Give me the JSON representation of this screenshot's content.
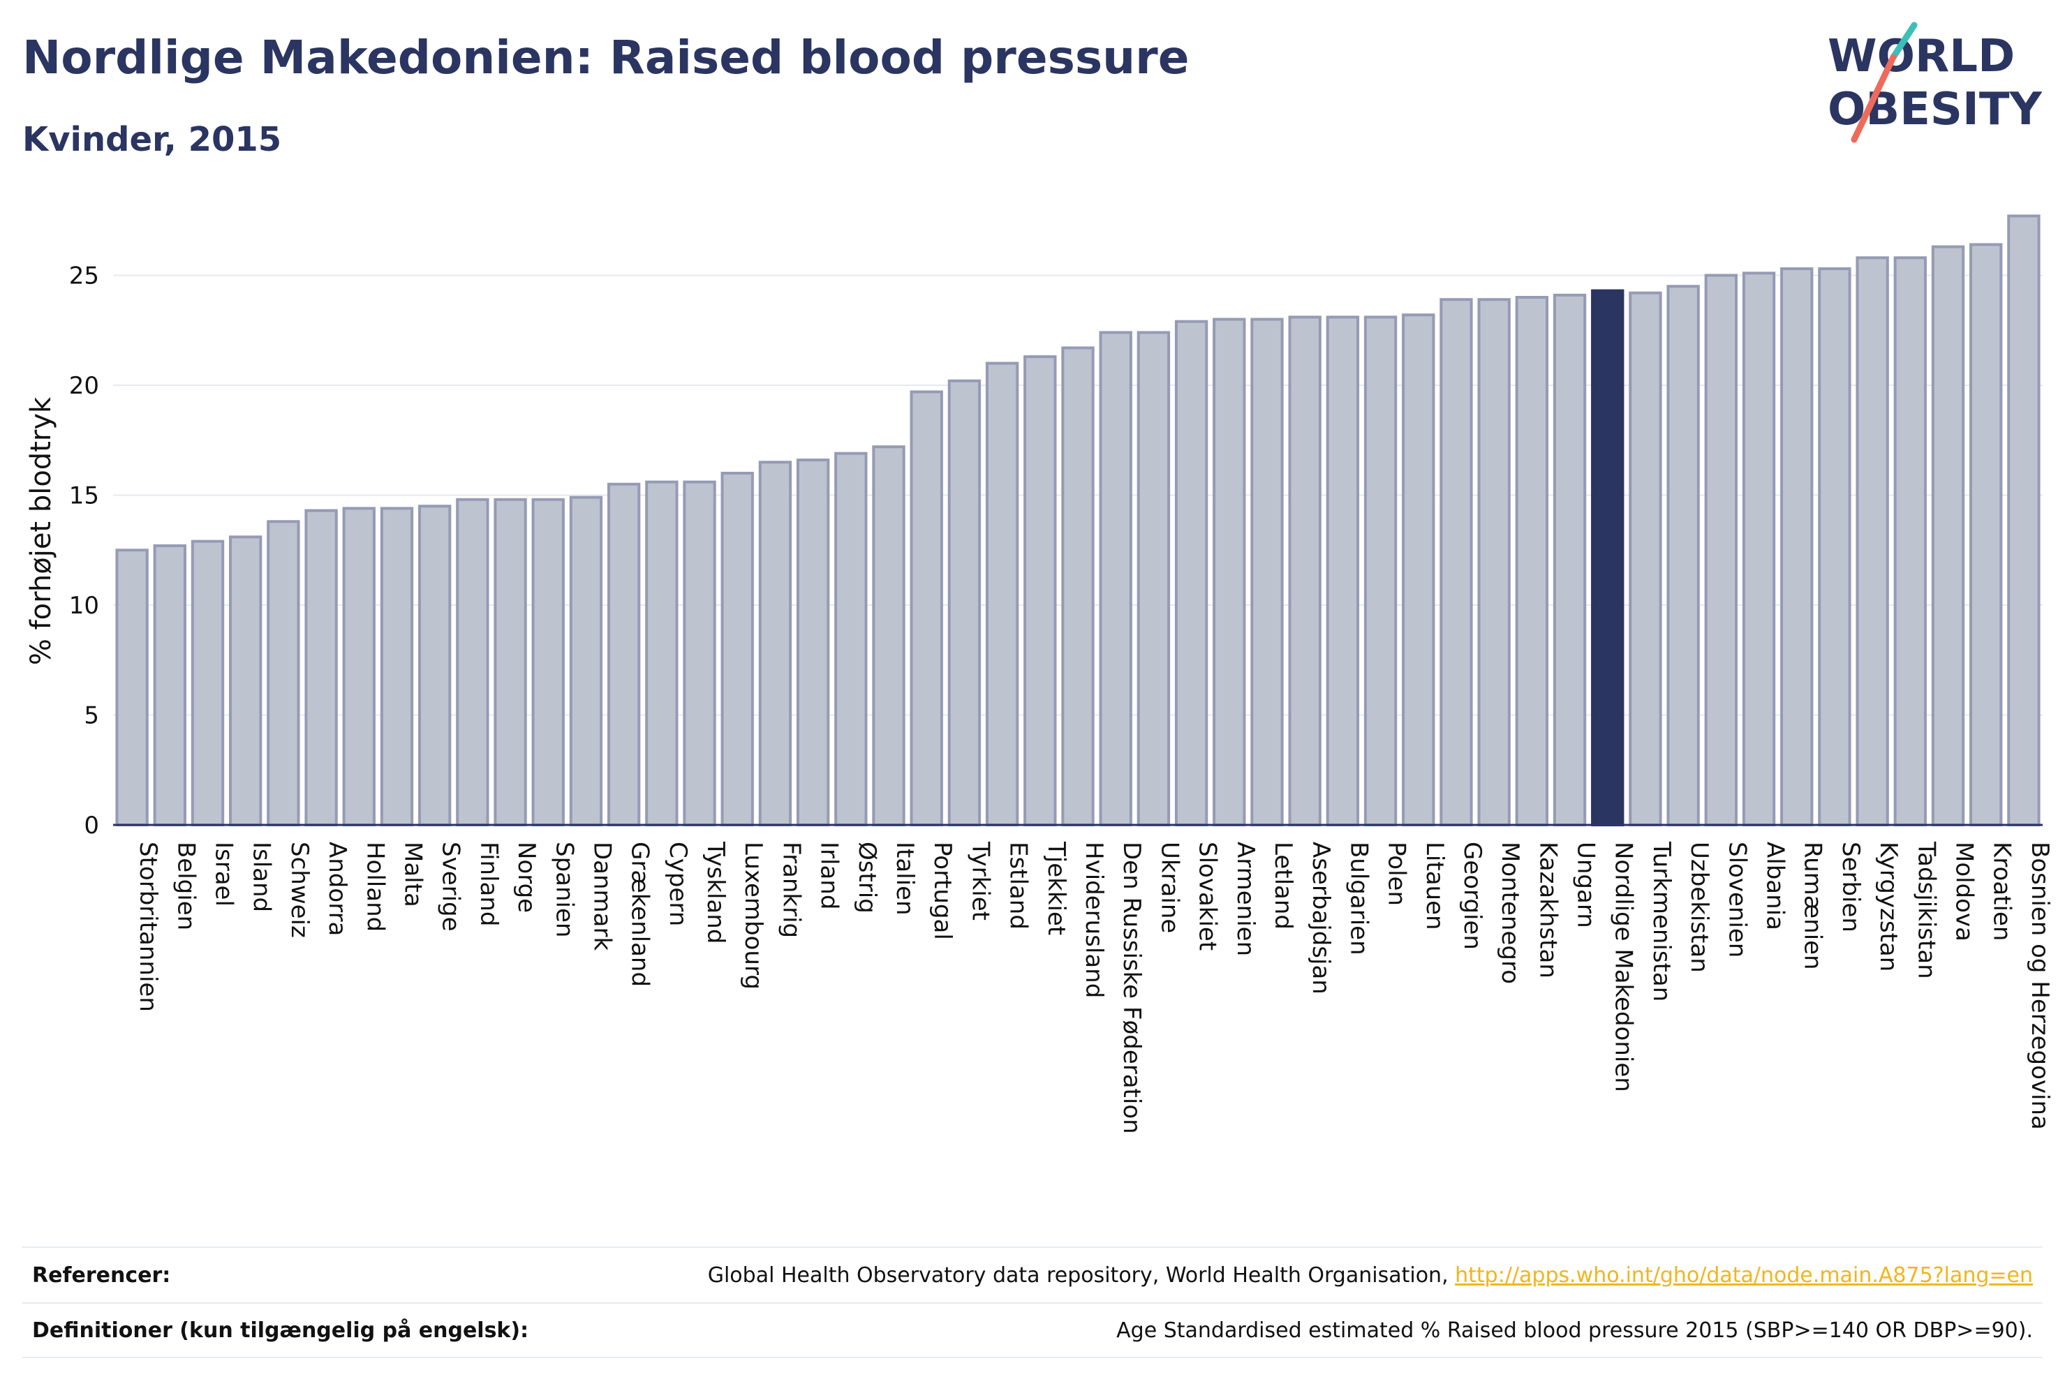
{
  "header": {
    "title": "Nordlige Makedonien: Raised blood pressure",
    "subtitle": "Kvinder, 2015"
  },
  "logo": {
    "line1": "WORLD",
    "line2": "OBESITY",
    "colors": {
      "text": "#2b3561",
      "slash_top": "#3bbfb8",
      "slash_bottom": "#ee6a5b"
    }
  },
  "chart_data": {
    "type": "bar",
    "xlabel": "",
    "ylabel": "% forhøjet blodtryk",
    "ylim": [
      0,
      28
    ],
    "yticks": [
      0,
      5,
      10,
      15,
      20,
      25
    ],
    "grid": true,
    "highlight": "Nordlige Makedonien",
    "colors": {
      "bar_fill": "#bec3d0",
      "bar_stroke": "#959bb4",
      "highlight_fill": "#2b3561",
      "grid": "#e6e8ee",
      "axis": "#2b3561"
    },
    "categories": [
      "Storbritannien",
      "Belgien",
      "Israel",
      "Island",
      "Schweiz",
      "Andorra",
      "Holland",
      "Malta",
      "Sverige",
      "Finland",
      "Norge",
      "Spanien",
      "Danmark",
      "Grækenland",
      "Cypern",
      "Tyskland",
      "Luxembourg",
      "Frankrig",
      "Irland",
      "Østrig",
      "Italien",
      "Portugal",
      "Tyrkiet",
      "Estland",
      "Tjekkiet",
      "Hviderusland",
      "Den Russiske Føderation",
      "Ukraine",
      "Slovakiet",
      "Armenien",
      "Letland",
      "Aserbajdsjan",
      "Bulgarien",
      "Polen",
      "Litauen",
      "Georgien",
      "Montenegro",
      "Kazakhstan",
      "Ungarn",
      "Nordlige Makedonien",
      "Turkmenistan",
      "Uzbekistan",
      "Slovenien",
      "Albania",
      "Rumænien",
      "Serbien",
      "Kyrgyzstan",
      "Tadsjikistan",
      "Moldova",
      "Kroatien",
      "Bosnien og Herzegovina"
    ],
    "values": [
      12.5,
      12.7,
      12.9,
      13.1,
      13.8,
      14.3,
      14.4,
      14.4,
      14.5,
      14.8,
      14.8,
      14.8,
      14.9,
      15.5,
      15.6,
      15.6,
      16.0,
      16.5,
      16.6,
      16.9,
      17.2,
      19.7,
      20.2,
      21.0,
      21.3,
      21.7,
      22.4,
      22.4,
      22.9,
      23.0,
      23.0,
      23.1,
      23.1,
      23.1,
      23.2,
      23.9,
      23.9,
      24.0,
      24.1,
      24.3,
      24.2,
      24.5,
      25.0,
      25.1,
      25.3,
      25.3,
      25.8,
      25.8,
      26.3,
      26.4,
      27.7
    ]
  },
  "footer": {
    "references_label": "Referencer:",
    "references_text": "Global Health Observatory data repository, World Health Organisation, ",
    "references_link": "http://apps.who.int/gho/data/node.main.A875?lang=en",
    "definitions_label": "Definitioner (kun tilgængelig på engelsk):",
    "definitions_text": "Age Standardised estimated % Raised blood pressure 2015 (SBP>=140 OR DBP>=90)."
  }
}
